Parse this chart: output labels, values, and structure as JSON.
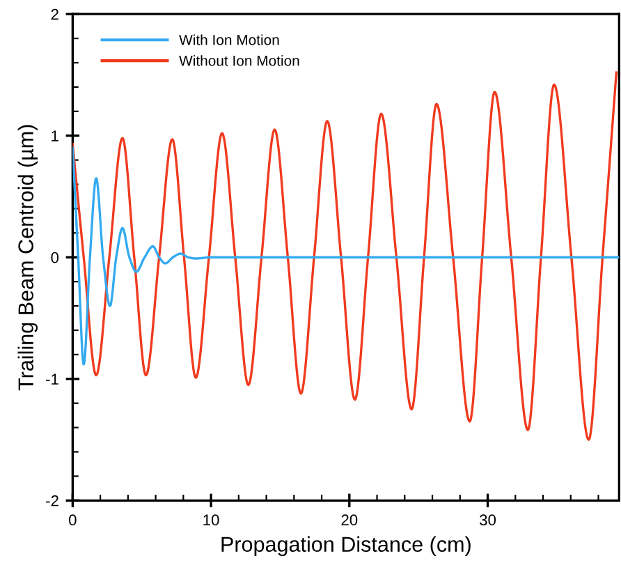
{
  "chart_data": {
    "type": "line",
    "xlabel": "Propagation Distance (cm)",
    "ylabel": "Trailing Beam Centroid (µm)",
    "xlim": [
      0,
      39.5
    ],
    "ylim": [
      -2,
      2
    ],
    "xticks": [
      0,
      {
        "value": 2,
        "label": null
      },
      {
        "value": 4,
        "label": null
      },
      {
        "value": 6,
        "label": null
      },
      {
        "value": 8,
        "label": null
      },
      10,
      {
        "value": 12,
        "label": null
      },
      {
        "value": 14,
        "label": null
      },
      {
        "value": 16,
        "label": null
      },
      {
        "value": 18,
        "label": null
      },
      20,
      {
        "value": 22,
        "label": null
      },
      {
        "value": 24,
        "label": null
      },
      {
        "value": 26,
        "label": null
      },
      {
        "value": 28,
        "label": null
      },
      30,
      {
        "value": 32,
        "label": null
      },
      {
        "value": 34,
        "label": null
      },
      {
        "value": 36,
        "label": null
      },
      {
        "value": 38,
        "label": null
      }
    ],
    "yticks": [
      -2,
      {
        "value": -1.8,
        "label": null
      },
      {
        "value": -1.6,
        "label": null
      },
      {
        "value": -1.4,
        "label": null
      },
      {
        "value": -1.2,
        "label": null
      },
      -1,
      {
        "value": -0.8,
        "label": null
      },
      {
        "value": -0.6,
        "label": null
      },
      {
        "value": -0.4,
        "label": null
      },
      {
        "value": -0.2,
        "label": null
      },
      0,
      {
        "value": 0.2,
        "label": null
      },
      {
        "value": 0.4,
        "label": null
      },
      {
        "value": 0.6,
        "label": null
      },
      {
        "value": 0.8,
        "label": null
      },
      1,
      {
        "value": 1.2,
        "label": null
      },
      {
        "value": 1.4,
        "label": null
      },
      {
        "value": 1.6,
        "label": null
      },
      {
        "value": 1.8,
        "label": null
      },
      2
    ],
    "grid": false,
    "legend": "top left",
    "marker": "none",
    "line_style": "solid",
    "series": [
      {
        "name": "With Ion Motion",
        "color": "#33aaf0",
        "x": [
          0,
          0.4,
          0.8,
          1.25,
          1.7,
          2.2,
          2.7,
          3.15,
          3.6,
          4.1,
          4.6,
          5.2,
          5.8,
          6.25,
          6.7,
          7.25,
          7.8,
          8.35,
          8.9,
          10,
          15,
          20,
          25,
          30,
          35,
          39.5
        ],
        "values": [
          0.9,
          0,
          -0.88,
          0,
          0.65,
          0,
          -0.4,
          0,
          0.24,
          0,
          -0.12,
          0,
          0.09,
          0,
          -0.05,
          0,
          0.03,
          0,
          -0.01,
          0,
          0,
          0,
          0,
          0,
          0,
          0
        ]
      },
      {
        "name": "Without Ion Motion",
        "color": "#f03a1e",
        "x": [
          0,
          0.8,
          1.7,
          2.65,
          3.6,
          4.45,
          5.3,
          6.25,
          7.2,
          8.05,
          8.9,
          9.85,
          10.8,
          11.75,
          12.7,
          13.65,
          14.6,
          15.55,
          16.5,
          17.45,
          18.4,
          19.4,
          20.4,
          21.35,
          22.3,
          23.4,
          24.5,
          25.4,
          26.3,
          27.5,
          28.7,
          29.6,
          30.5,
          31.7,
          32.9,
          33.85,
          34.8,
          36.05,
          37.3,
          38.3,
          39.3
        ],
        "values": [
          0.93,
          0,
          -0.97,
          0,
          0.98,
          0,
          -0.97,
          0,
          0.97,
          0,
          -0.99,
          0,
          1.02,
          0,
          -1.05,
          0,
          1.05,
          0,
          -1.12,
          0,
          1.12,
          0,
          -1.17,
          0,
          1.18,
          0,
          -1.25,
          0,
          1.26,
          0,
          -1.35,
          0,
          1.36,
          0,
          -1.42,
          0,
          1.42,
          0,
          -1.5,
          0,
          1.52
        ]
      }
    ]
  }
}
